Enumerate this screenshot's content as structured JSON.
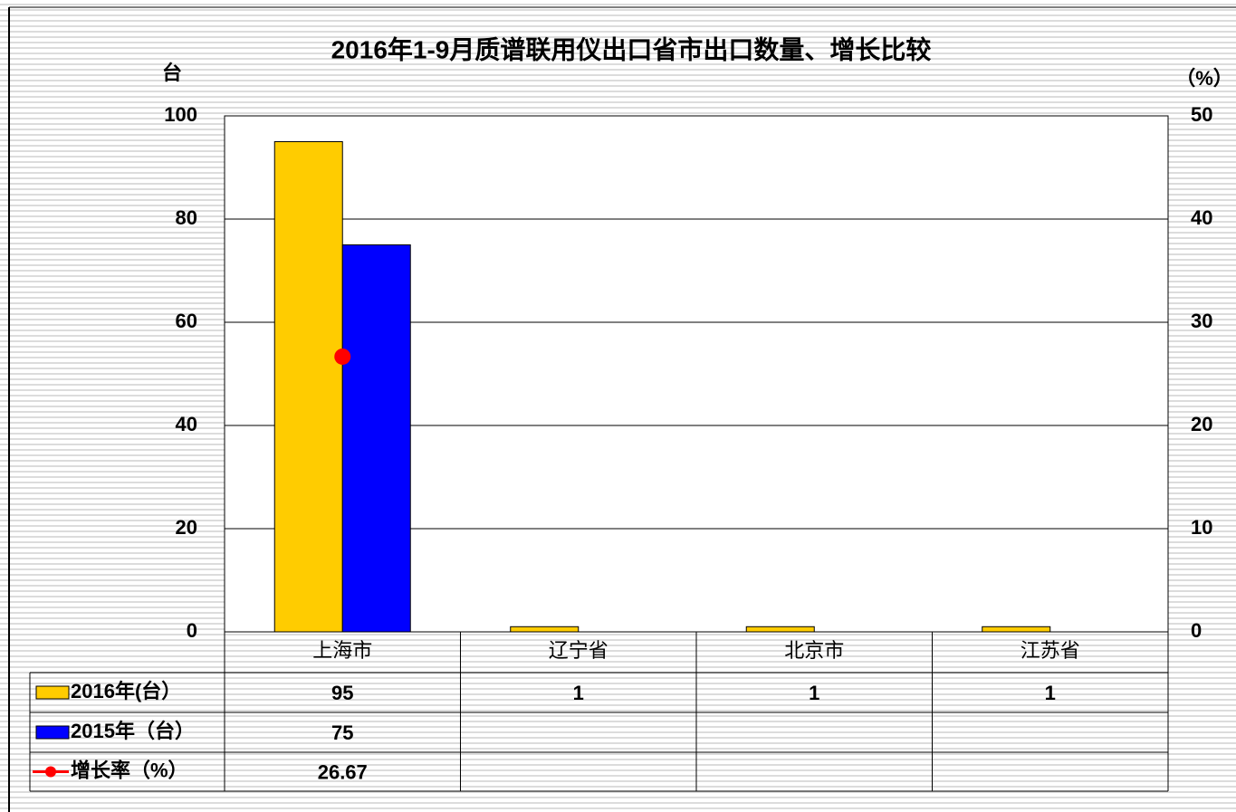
{
  "chart_data": {
    "type": "bar",
    "title": "2016年1-9月质谱联用仪出口省市出口数量、增长比较",
    "y_label": "台",
    "y2_label": "（%）",
    "categories": [
      "上海市",
      "辽宁省",
      "北京市",
      "江苏省"
    ],
    "series": [
      {
        "name": "2016年(台）",
        "color": "#ffcc00",
        "type": "bar",
        "values": [
          95,
          1,
          1,
          1
        ]
      },
      {
        "name": "2015年（台）",
        "color": "#0000ff",
        "type": "bar",
        "values": [
          75,
          null,
          null,
          null
        ]
      },
      {
        "name": "增长率（%）",
        "color": "#ff0000",
        "type": "line",
        "axis": "y2",
        "values": [
          26.67,
          null,
          null,
          null
        ]
      }
    ],
    "ylim": [
      0,
      100
    ],
    "yticks": [
      0,
      20,
      40,
      60,
      80,
      100
    ],
    "y2lim": [
      0,
      50
    ],
    "y2ticks": [
      0,
      10,
      20,
      30,
      40,
      50
    ],
    "grid": true,
    "legend": "data-table"
  }
}
